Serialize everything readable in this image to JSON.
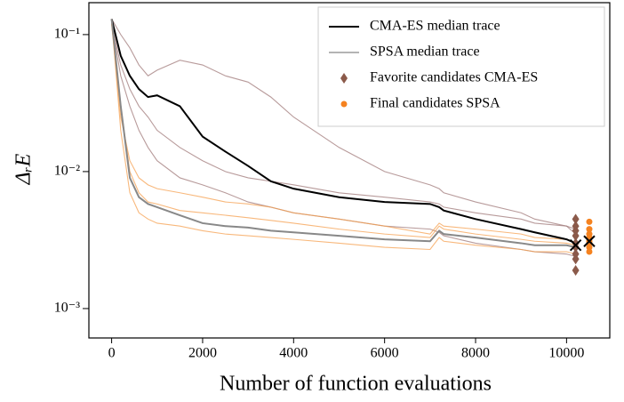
{
  "chart_data": {
    "type": "line",
    "xlabel": "Number of function evaluations",
    "ylabel": "ΔᵣE",
    "log_y": true,
    "legend": "upper right",
    "xlim": [
      -500,
      10950
    ],
    "ylim": [
      0.00061,
      0.171
    ],
    "xticks": [
      0,
      2000,
      4000,
      6000,
      8000,
      10000
    ],
    "yticks": [
      {
        "value": 0.001,
        "label": "10⁻³"
      },
      {
        "value": 0.01,
        "label": "10⁻²"
      },
      {
        "value": 0.1,
        "label": "10⁻¹"
      }
    ],
    "x": [
      0,
      200,
      400,
      600,
      800,
      1000,
      1500,
      2000,
      2500,
      3000,
      3500,
      4000,
      5000,
      6000,
      7000,
      7200,
      7300,
      8000,
      9000,
      9300,
      10000,
      10200
    ],
    "runs": [
      {
        "color": "#a07a7a",
        "values": [
          0.13,
          0.1,
          0.08,
          0.06,
          0.05,
          0.055,
          0.065,
          0.06,
          0.05,
          0.045,
          0.035,
          0.025,
          0.015,
          0.01,
          0.008,
          0.0075,
          0.007,
          0.006,
          0.005,
          0.0045,
          0.004,
          0.0038
        ]
      },
      {
        "color": "#a07a7a",
        "values": [
          0.12,
          0.06,
          0.04,
          0.03,
          0.025,
          0.02,
          0.015,
          0.012,
          0.01,
          0.009,
          0.0085,
          0.008,
          0.007,
          0.0065,
          0.006,
          0.0058,
          0.0055,
          0.005,
          0.0045,
          0.0042,
          0.004,
          0.0035
        ]
      },
      {
        "color": "#a07a7a",
        "values": [
          0.12,
          0.05,
          0.03,
          0.02,
          0.015,
          0.012,
          0.009,
          0.008,
          0.007,
          0.006,
          0.0055,
          0.005,
          0.0045,
          0.004,
          0.0038,
          0.0036,
          0.0034,
          0.003,
          0.0027,
          0.0026,
          0.0025,
          0.0024
        ]
      },
      {
        "color": "#f5a050",
        "values": [
          0.12,
          0.025,
          0.012,
          0.009,
          0.008,
          0.0075,
          0.007,
          0.0065,
          0.006,
          0.0058,
          0.0055,
          0.005,
          0.0045,
          0.004,
          0.0035,
          0.0042,
          0.004,
          0.0038,
          0.0035,
          0.0033,
          0.0032,
          0.003
        ]
      },
      {
        "color": "#f5a050",
        "values": [
          0.13,
          0.02,
          0.007,
          0.005,
          0.0045,
          0.0042,
          0.004,
          0.0037,
          0.0035,
          0.0034,
          0.0033,
          0.0032,
          0.003,
          0.0028,
          0.0027,
          0.0033,
          0.0031,
          0.0029,
          0.0027,
          0.0026,
          0.0026,
          0.0025
        ]
      },
      {
        "color": "#f5a050",
        "values": [
          0.12,
          0.03,
          0.01,
          0.007,
          0.006,
          0.0058,
          0.0052,
          0.005,
          0.0048,
          0.0046,
          0.0044,
          0.0042,
          0.0038,
          0.0035,
          0.0033,
          0.004,
          0.0038,
          0.0035,
          0.0032,
          0.0031,
          0.003,
          0.0029
        ]
      }
    ],
    "series": [
      {
        "name": "CMA-ES median trace",
        "color": "#000000",
        "values": [
          0.13,
          0.07,
          0.05,
          0.04,
          0.035,
          0.036,
          0.03,
          0.018,
          0.014,
          0.011,
          0.0085,
          0.0075,
          0.0065,
          0.006,
          0.0058,
          0.0055,
          0.0052,
          0.0045,
          0.0038,
          0.0036,
          0.0032,
          0.003
        ]
      },
      {
        "name": "SPSA median trace",
        "color": "#888888",
        "values": [
          0.13,
          0.03,
          0.009,
          0.0065,
          0.0058,
          0.0055,
          0.0048,
          0.0042,
          0.004,
          0.0039,
          0.0037,
          0.0036,
          0.0034,
          0.0032,
          0.0031,
          0.0037,
          0.0035,
          0.0033,
          0.003,
          0.0029,
          0.0029,
          0.0028
        ]
      }
    ],
    "scatter": [
      {
        "name": "Favorite candidates CMA-ES",
        "color": "#8b5a4a",
        "marker": "diamond",
        "x": [
          10200,
          10200,
          10200,
          10200,
          10200,
          10200,
          10200,
          10200,
          10200
        ],
        "values": [
          0.0045,
          0.004,
          0.0037,
          0.0034,
          0.003,
          0.0028,
          0.0025,
          0.0023,
          0.0019
        ]
      },
      {
        "name": "Final candidates SPSA",
        "color": "#f5821f",
        "marker": "circle",
        "x": [
          10500,
          10500,
          10500,
          10500,
          10500,
          10500,
          10500,
          10500
        ],
        "values": [
          0.0043,
          0.0038,
          0.0035,
          0.0033,
          0.0031,
          0.003,
          0.0028,
          0.0026
        ]
      }
    ],
    "medians": {
      "color": "#000000",
      "x": [
        10200,
        10500
      ],
      "values": [
        0.0029,
        0.0031
      ]
    }
  }
}
